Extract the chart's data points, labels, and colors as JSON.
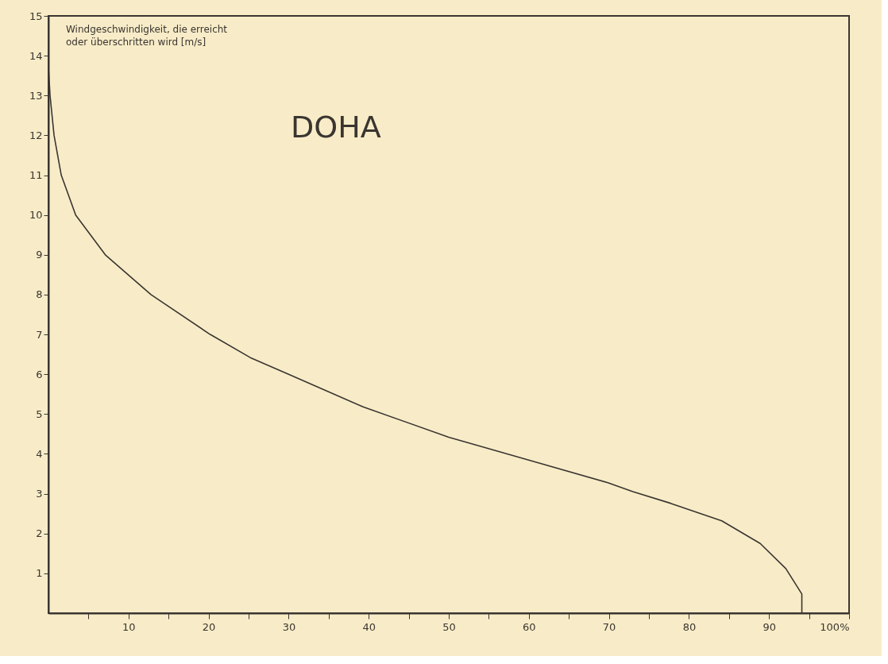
{
  "chart_data": {
    "type": "line",
    "title": "DOHA",
    "ylabel": "Windgeschwindigkeit, die erreicht oder überschritten wird [m/s]",
    "x": [
      0,
      0.2,
      0.7,
      1.6,
      3.4,
      7.1,
      12.8,
      20.2,
      25.2,
      30,
      39.3,
      50,
      59.9,
      69.8,
      73,
      77.7,
      84.1,
      88.9,
      92.1,
      94.1,
      94.1
    ],
    "series": [
      {
        "color": "#3a3530",
        "values": [
          13.7,
          13.0,
          12.0,
          11.0,
          10.0,
          9.0,
          8.0,
          7.0,
          6.42,
          6.0,
          5.18,
          4.42,
          3.85,
          3.28,
          3.05,
          2.76,
          2.32,
          1.75,
          1.12,
          0.48,
          0
        ]
      }
    ],
    "xlim": [
      0,
      100
    ],
    "ylim": [
      0,
      15
    ],
    "xticks": [
      {
        "value": 5,
        "label": null
      },
      10,
      {
        "value": 15,
        "label": null
      },
      20,
      {
        "value": 25,
        "label": null
      },
      30,
      {
        "value": 35,
        "label": null
      },
      40,
      {
        "value": 45,
        "label": null
      },
      50,
      {
        "value": 55,
        "label": null
      },
      60,
      {
        "value": 65,
        "label": null
      },
      70,
      {
        "value": 75,
        "label": null
      },
      80,
      {
        "value": 85,
        "label": null
      },
      90,
      {
        "value": 95,
        "label": null
      },
      {
        "value": 100,
        "label": "100%"
      }
    ],
    "yticks": [
      1,
      2,
      3,
      4,
      5,
      6,
      7,
      8,
      9,
      10,
      11,
      12,
      13,
      14,
      15
    ],
    "grid": false,
    "marker": "none",
    "line_style": "solid"
  }
}
